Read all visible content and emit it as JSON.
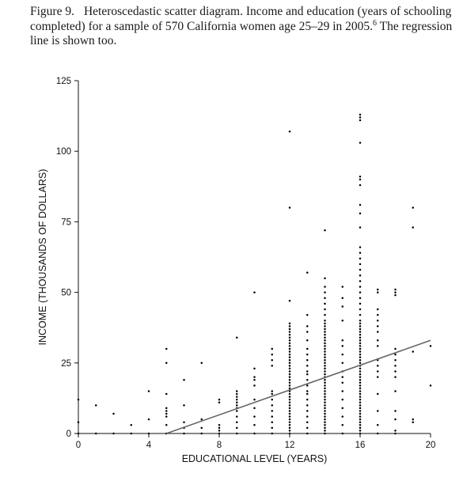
{
  "caption": {
    "figure_label": "Figure 9.",
    "text": "Heteroscedastic scatter diagram.   Income and education (years of schooling completed) for a sample of 570 California women age 25–29 in 2005.",
    "footnote_mark": "6",
    "text_after": " The regression line is shown too."
  },
  "chart_data": {
    "type": "scatter",
    "title": "",
    "xlabel": "EDUCATIONAL LEVEL (YEARS)",
    "ylabel": "INCOME (THOUSANDS OF DOLLARS)",
    "xlim": [
      0,
      20
    ],
    "ylim": [
      0,
      125
    ],
    "xticks": [
      0,
      4,
      8,
      12,
      16,
      20
    ],
    "yticks": [
      0,
      25,
      50,
      75,
      100,
      125
    ],
    "grid": false,
    "point_color": "#000000",
    "line_color": "#666666",
    "regression_line": {
      "x": [
        5,
        20
      ],
      "y": [
        0,
        33
      ]
    },
    "points": [
      [
        0,
        0
      ],
      [
        0,
        4
      ],
      [
        0,
        12
      ],
      [
        1,
        0
      ],
      [
        1,
        10
      ],
      [
        2,
        0
      ],
      [
        2,
        7
      ],
      [
        3,
        0
      ],
      [
        3,
        3
      ],
      [
        4,
        0
      ],
      [
        4,
        5
      ],
      [
        4,
        15
      ],
      [
        5,
        0
      ],
      [
        5,
        3
      ],
      [
        5,
        6
      ],
      [
        5,
        7
      ],
      [
        5,
        8
      ],
      [
        5,
        9
      ],
      [
        5,
        14
      ],
      [
        5,
        25
      ],
      [
        5,
        30
      ],
      [
        6,
        0
      ],
      [
        6,
        2
      ],
      [
        6,
        4
      ],
      [
        6,
        10
      ],
      [
        6,
        19
      ],
      [
        7,
        0
      ],
      [
        7,
        2
      ],
      [
        7,
        5
      ],
      [
        7,
        25
      ],
      [
        8,
        0
      ],
      [
        8,
        1
      ],
      [
        8,
        2
      ],
      [
        8,
        3
      ],
      [
        8,
        11
      ],
      [
        8,
        12
      ],
      [
        9,
        0
      ],
      [
        9,
        2
      ],
      [
        9,
        4
      ],
      [
        9,
        6
      ],
      [
        9,
        8
      ],
      [
        9,
        9
      ],
      [
        9,
        10
      ],
      [
        9,
        11
      ],
      [
        9,
        12
      ],
      [
        9,
        13
      ],
      [
        9,
        14
      ],
      [
        9,
        15
      ],
      [
        9,
        34
      ],
      [
        10,
        0
      ],
      [
        10,
        3
      ],
      [
        10,
        6
      ],
      [
        10,
        9
      ],
      [
        10,
        12
      ],
      [
        10,
        17
      ],
      [
        10,
        19
      ],
      [
        10,
        20
      ],
      [
        10,
        23
      ],
      [
        10,
        50
      ],
      [
        11,
        0
      ],
      [
        11,
        2
      ],
      [
        11,
        4
      ],
      [
        11,
        6
      ],
      [
        11,
        8
      ],
      [
        11,
        10
      ],
      [
        11,
        12
      ],
      [
        11,
        14
      ],
      [
        11,
        15
      ],
      [
        11,
        24
      ],
      [
        11,
        26
      ],
      [
        11,
        28
      ],
      [
        11,
        30
      ],
      [
        12,
        0
      ],
      [
        12,
        1
      ],
      [
        12,
        2
      ],
      [
        12,
        3
      ],
      [
        12,
        4
      ],
      [
        12,
        5
      ],
      [
        12,
        6
      ],
      [
        12,
        7
      ],
      [
        12,
        8
      ],
      [
        12,
        9
      ],
      [
        12,
        10
      ],
      [
        12,
        11
      ],
      [
        12,
        12
      ],
      [
        12,
        13
      ],
      [
        12,
        14
      ],
      [
        12,
        15
      ],
      [
        12,
        16
      ],
      [
        12,
        17
      ],
      [
        12,
        18
      ],
      [
        12,
        19
      ],
      [
        12,
        20
      ],
      [
        12,
        21
      ],
      [
        12,
        22
      ],
      [
        12,
        23
      ],
      [
        12,
        24
      ],
      [
        12,
        25
      ],
      [
        12,
        26
      ],
      [
        12,
        27
      ],
      [
        12,
        28
      ],
      [
        12,
        29
      ],
      [
        12,
        30
      ],
      [
        12,
        31
      ],
      [
        12,
        32
      ],
      [
        12,
        33
      ],
      [
        12,
        34
      ],
      [
        12,
        35
      ],
      [
        12,
        36
      ],
      [
        12,
        37
      ],
      [
        12,
        38
      ],
      [
        12,
        39
      ],
      [
        12,
        47
      ],
      [
        12,
        80
      ],
      [
        12,
        107
      ],
      [
        13,
        0
      ],
      [
        13,
        2
      ],
      [
        13,
        4
      ],
      [
        13,
        6
      ],
      [
        13,
        8
      ],
      [
        13,
        10
      ],
      [
        13,
        12
      ],
      [
        13,
        14
      ],
      [
        13,
        15
      ],
      [
        13,
        17
      ],
      [
        13,
        19
      ],
      [
        13,
        21
      ],
      [
        13,
        22
      ],
      [
        13,
        24
      ],
      [
        13,
        26
      ],
      [
        13,
        28
      ],
      [
        13,
        30
      ],
      [
        13,
        33
      ],
      [
        13,
        36
      ],
      [
        13,
        38
      ],
      [
        13,
        42
      ],
      [
        13,
        57
      ],
      [
        14,
        0
      ],
      [
        14,
        1
      ],
      [
        14,
        2
      ],
      [
        14,
        3
      ],
      [
        14,
        4
      ],
      [
        14,
        5
      ],
      [
        14,
        6
      ],
      [
        14,
        7
      ],
      [
        14,
        8
      ],
      [
        14,
        9
      ],
      [
        14,
        10
      ],
      [
        14,
        11
      ],
      [
        14,
        12
      ],
      [
        14,
        13
      ],
      [
        14,
        14
      ],
      [
        14,
        15
      ],
      [
        14,
        16
      ],
      [
        14,
        17
      ],
      [
        14,
        18
      ],
      [
        14,
        19
      ],
      [
        14,
        20
      ],
      [
        14,
        21
      ],
      [
        14,
        22
      ],
      [
        14,
        23
      ],
      [
        14,
        24
      ],
      [
        14,
        25
      ],
      [
        14,
        26
      ],
      [
        14,
        27
      ],
      [
        14,
        28
      ],
      [
        14,
        29
      ],
      [
        14,
        30
      ],
      [
        14,
        31
      ],
      [
        14,
        32
      ],
      [
        14,
        33
      ],
      [
        14,
        34
      ],
      [
        14,
        35
      ],
      [
        14,
        36
      ],
      [
        14,
        37
      ],
      [
        14,
        38
      ],
      [
        14,
        39
      ],
      [
        14,
        40
      ],
      [
        14,
        42
      ],
      [
        14,
        44
      ],
      [
        14,
        46
      ],
      [
        14,
        48
      ],
      [
        14,
        50
      ],
      [
        14,
        52
      ],
      [
        14,
        55
      ],
      [
        14,
        72
      ],
      [
        15,
        0
      ],
      [
        15,
        3
      ],
      [
        15,
        6
      ],
      [
        15,
        9
      ],
      [
        15,
        12
      ],
      [
        15,
        15
      ],
      [
        15,
        18
      ],
      [
        15,
        20
      ],
      [
        15,
        22
      ],
      [
        15,
        25
      ],
      [
        15,
        28
      ],
      [
        15,
        31
      ],
      [
        15,
        33
      ],
      [
        15,
        40
      ],
      [
        15,
        45
      ],
      [
        15,
        48
      ],
      [
        15,
        52
      ],
      [
        16,
        0
      ],
      [
        16,
        1
      ],
      [
        16,
        2
      ],
      [
        16,
        3
      ],
      [
        16,
        4
      ],
      [
        16,
        5
      ],
      [
        16,
        6
      ],
      [
        16,
        7
      ],
      [
        16,
        8
      ],
      [
        16,
        9
      ],
      [
        16,
        10
      ],
      [
        16,
        11
      ],
      [
        16,
        12
      ],
      [
        16,
        13
      ],
      [
        16,
        14
      ],
      [
        16,
        15
      ],
      [
        16,
        16
      ],
      [
        16,
        17
      ],
      [
        16,
        18
      ],
      [
        16,
        19
      ],
      [
        16,
        20
      ],
      [
        16,
        21
      ],
      [
        16,
        22
      ],
      [
        16,
        23
      ],
      [
        16,
        24
      ],
      [
        16,
        25
      ],
      [
        16,
        26
      ],
      [
        16,
        27
      ],
      [
        16,
        28
      ],
      [
        16,
        29
      ],
      [
        16,
        30
      ],
      [
        16,
        31
      ],
      [
        16,
        32
      ],
      [
        16,
        33
      ],
      [
        16,
        34
      ],
      [
        16,
        35
      ],
      [
        16,
        36
      ],
      [
        16,
        37
      ],
      [
        16,
        38
      ],
      [
        16,
        39
      ],
      [
        16,
        40
      ],
      [
        16,
        42
      ],
      [
        16,
        44
      ],
      [
        16,
        46
      ],
      [
        16,
        48
      ],
      [
        16,
        50
      ],
      [
        16,
        52
      ],
      [
        16,
        54
      ],
      [
        16,
        56
      ],
      [
        16,
        58
      ],
      [
        16,
        60
      ],
      [
        16,
        62
      ],
      [
        16,
        64
      ],
      [
        16,
        66
      ],
      [
        16,
        73
      ],
      [
        16,
        78
      ],
      [
        16,
        81
      ],
      [
        16,
        88
      ],
      [
        16,
        90
      ],
      [
        16,
        91
      ],
      [
        16,
        103
      ],
      [
        16,
        111
      ],
      [
        16,
        112
      ],
      [
        16,
        113
      ],
      [
        17,
        0
      ],
      [
        17,
        3
      ],
      [
        17,
        8
      ],
      [
        17,
        14
      ],
      [
        17,
        20
      ],
      [
        17,
        22
      ],
      [
        17,
        24
      ],
      [
        17,
        26
      ],
      [
        17,
        31
      ],
      [
        17,
        33
      ],
      [
        17,
        36
      ],
      [
        17,
        38
      ],
      [
        17,
        40
      ],
      [
        17,
        42
      ],
      [
        17,
        44
      ],
      [
        17,
        50
      ],
      [
        17,
        51
      ],
      [
        18,
        0
      ],
      [
        18,
        1
      ],
      [
        18,
        5
      ],
      [
        18,
        8
      ],
      [
        18,
        15
      ],
      [
        18,
        20
      ],
      [
        18,
        22
      ],
      [
        18,
        24
      ],
      [
        18,
        26
      ],
      [
        18,
        28
      ],
      [
        18,
        30
      ],
      [
        18,
        49
      ],
      [
        18,
        50
      ],
      [
        18,
        51
      ],
      [
        19,
        4
      ],
      [
        19,
        5
      ],
      [
        19,
        29
      ],
      [
        19,
        73
      ],
      [
        19,
        80
      ],
      [
        20,
        17
      ],
      [
        20,
        31
      ]
    ]
  }
}
